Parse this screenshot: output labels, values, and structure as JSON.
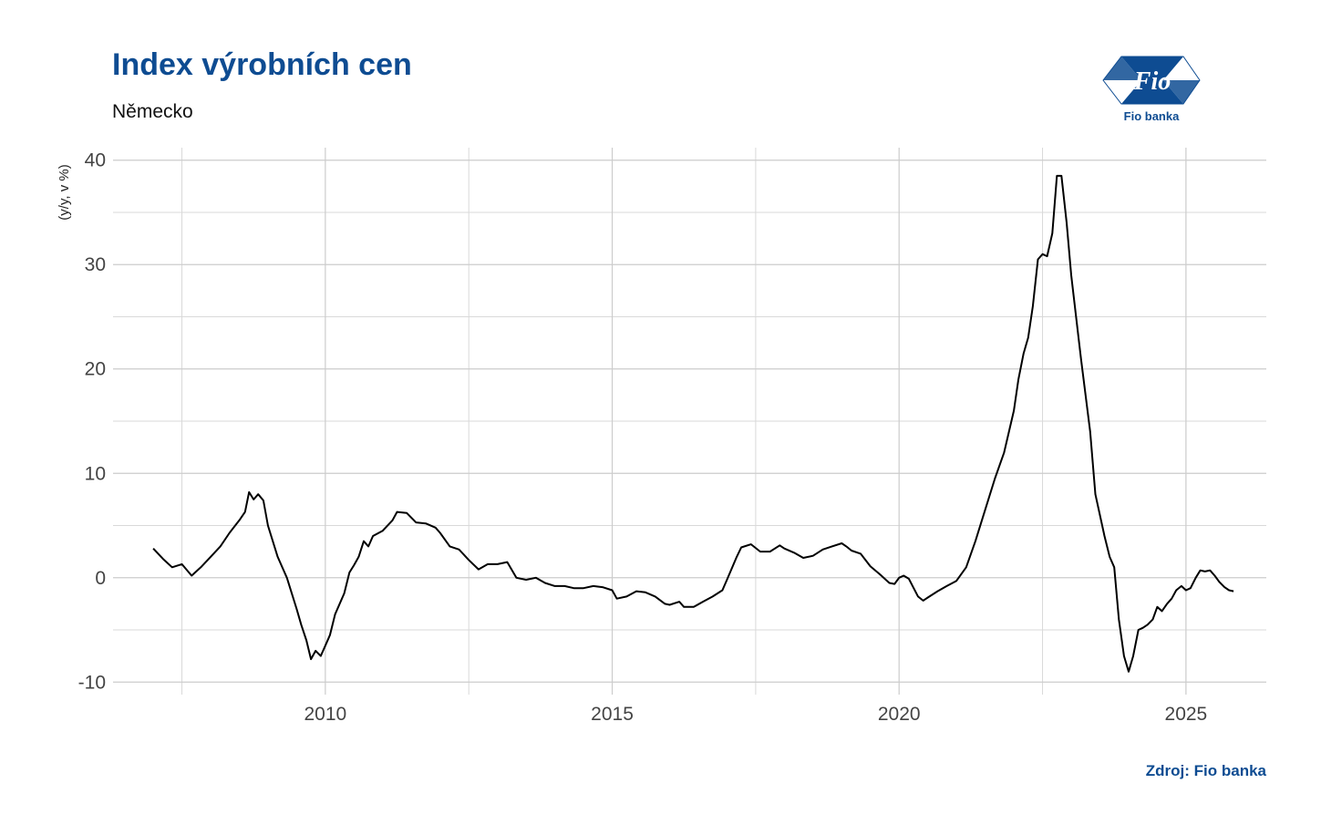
{
  "header": {
    "title": "Index výrobních cen",
    "subtitle": "Německo"
  },
  "footer": {
    "source": "Zdroj: Fio banka"
  },
  "logo": {
    "mark_text": "Fio",
    "caption": "Fio banka",
    "color": "#0e4c92"
  },
  "chart_data": {
    "type": "line",
    "title": "Index výrobních cen",
    "subtitle": "Německo",
    "ylabel": "(y/y, v %)",
    "xlabel": "",
    "xlim": [
      2006.3,
      2026.4
    ],
    "ylim": [
      -11.2,
      41.2
    ],
    "x_ticks": [
      2010,
      2015,
      2020,
      2025
    ],
    "y_ticks": [
      -10,
      0,
      10,
      20,
      30,
      40
    ],
    "grid": true,
    "line_color": "#000000",
    "series": [
      {
        "points": [
          [
            2007.0,
            2.8
          ],
          [
            2007.17,
            1.8
          ],
          [
            2007.33,
            1.0
          ],
          [
            2007.5,
            1.3
          ],
          [
            2007.67,
            0.2
          ],
          [
            2007.83,
            1.0
          ],
          [
            2008.0,
            2.0
          ],
          [
            2008.17,
            3.0
          ],
          [
            2008.33,
            4.3
          ],
          [
            2008.5,
            5.5
          ],
          [
            2008.6,
            6.3
          ],
          [
            2008.67,
            8.2
          ],
          [
            2008.75,
            7.5
          ],
          [
            2008.83,
            8.0
          ],
          [
            2008.92,
            7.4
          ],
          [
            2009.0,
            5.0
          ],
          [
            2009.17,
            2.0
          ],
          [
            2009.33,
            0.0
          ],
          [
            2009.5,
            -3.0
          ],
          [
            2009.58,
            -4.5
          ],
          [
            2009.67,
            -6.0
          ],
          [
            2009.75,
            -7.8
          ],
          [
            2009.83,
            -7.0
          ],
          [
            2009.92,
            -7.5
          ],
          [
            2010.0,
            -6.5
          ],
          [
            2010.08,
            -5.5
          ],
          [
            2010.17,
            -3.5
          ],
          [
            2010.33,
            -1.5
          ],
          [
            2010.42,
            0.5
          ],
          [
            2010.5,
            1.2
          ],
          [
            2010.58,
            2.0
          ],
          [
            2010.67,
            3.5
          ],
          [
            2010.75,
            3.0
          ],
          [
            2010.83,
            4.0
          ],
          [
            2011.0,
            4.5
          ],
          [
            2011.17,
            5.5
          ],
          [
            2011.25,
            6.3
          ],
          [
            2011.42,
            6.2
          ],
          [
            2011.58,
            5.3
          ],
          [
            2011.75,
            5.2
          ],
          [
            2011.92,
            4.8
          ],
          [
            2012.0,
            4.3
          ],
          [
            2012.17,
            3.0
          ],
          [
            2012.33,
            2.7
          ],
          [
            2012.5,
            1.7
          ],
          [
            2012.67,
            0.8
          ],
          [
            2012.83,
            1.3
          ],
          [
            2013.0,
            1.3
          ],
          [
            2013.17,
            1.5
          ],
          [
            2013.33,
            0.0
          ],
          [
            2013.5,
            -0.2
          ],
          [
            2013.67,
            0.0
          ],
          [
            2013.83,
            -0.5
          ],
          [
            2014.0,
            -0.8
          ],
          [
            2014.17,
            -0.8
          ],
          [
            2014.33,
            -1.0
          ],
          [
            2014.5,
            -1.0
          ],
          [
            2014.67,
            -0.8
          ],
          [
            2014.83,
            -0.9
          ],
          [
            2015.0,
            -1.2
          ],
          [
            2015.08,
            -2.0
          ],
          [
            2015.25,
            -1.8
          ],
          [
            2015.42,
            -1.3
          ],
          [
            2015.58,
            -1.4
          ],
          [
            2015.75,
            -1.8
          ],
          [
            2015.92,
            -2.5
          ],
          [
            2016.0,
            -2.6
          ],
          [
            2016.17,
            -2.3
          ],
          [
            2016.25,
            -2.8
          ],
          [
            2016.42,
            -2.8
          ],
          [
            2016.58,
            -2.3
          ],
          [
            2016.75,
            -1.8
          ],
          [
            2016.92,
            -1.2
          ],
          [
            2017.0,
            -0.2
          ],
          [
            2017.17,
            2.0
          ],
          [
            2017.25,
            2.9
          ],
          [
            2017.42,
            3.2
          ],
          [
            2017.58,
            2.5
          ],
          [
            2017.75,
            2.5
          ],
          [
            2017.92,
            3.1
          ],
          [
            2018.0,
            2.8
          ],
          [
            2018.17,
            2.4
          ],
          [
            2018.33,
            1.9
          ],
          [
            2018.5,
            2.1
          ],
          [
            2018.67,
            2.7
          ],
          [
            2018.83,
            3.0
          ],
          [
            2019.0,
            3.3
          ],
          [
            2019.08,
            3.0
          ],
          [
            2019.17,
            2.6
          ],
          [
            2019.33,
            2.3
          ],
          [
            2019.5,
            1.1
          ],
          [
            2019.67,
            0.3
          ],
          [
            2019.83,
            -0.5
          ],
          [
            2019.92,
            -0.6
          ],
          [
            2020.0,
            0.0
          ],
          [
            2020.08,
            0.2
          ],
          [
            2020.17,
            -0.1
          ],
          [
            2020.33,
            -1.8
          ],
          [
            2020.42,
            -2.2
          ],
          [
            2020.5,
            -1.9
          ],
          [
            2020.67,
            -1.3
          ],
          [
            2020.83,
            -0.8
          ],
          [
            2021.0,
            -0.3
          ],
          [
            2021.17,
            1.0
          ],
          [
            2021.33,
            3.5
          ],
          [
            2021.5,
            6.5
          ],
          [
            2021.67,
            9.5
          ],
          [
            2021.83,
            12.0
          ],
          [
            2022.0,
            16.0
          ],
          [
            2022.08,
            19.0
          ],
          [
            2022.17,
            21.5
          ],
          [
            2022.25,
            23.0
          ],
          [
            2022.33,
            26.0
          ],
          [
            2022.42,
            30.5
          ],
          [
            2022.5,
            31.0
          ],
          [
            2022.58,
            30.8
          ],
          [
            2022.67,
            33.0
          ],
          [
            2022.75,
            38.5
          ],
          [
            2022.83,
            38.5
          ],
          [
            2022.92,
            34.0
          ],
          [
            2023.0,
            29.0
          ],
          [
            2023.17,
            21.0
          ],
          [
            2023.33,
            14.0
          ],
          [
            2023.42,
            8.0
          ],
          [
            2023.58,
            4.0
          ],
          [
            2023.67,
            2.0
          ],
          [
            2023.75,
            1.0
          ],
          [
            2023.83,
            -4.0
          ],
          [
            2023.92,
            -7.5
          ],
          [
            2024.0,
            -9.0
          ],
          [
            2024.08,
            -7.5
          ],
          [
            2024.17,
            -5.0
          ],
          [
            2024.25,
            -4.8
          ],
          [
            2024.33,
            -4.5
          ],
          [
            2024.42,
            -4.0
          ],
          [
            2024.5,
            -2.8
          ],
          [
            2024.58,
            -3.2
          ],
          [
            2024.67,
            -2.5
          ],
          [
            2024.75,
            -2.0
          ],
          [
            2024.83,
            -1.2
          ],
          [
            2024.92,
            -0.8
          ],
          [
            2025.0,
            -1.2
          ],
          [
            2025.08,
            -1.0
          ],
          [
            2025.17,
            0.0
          ],
          [
            2025.25,
            0.7
          ],
          [
            2025.33,
            0.6
          ],
          [
            2025.42,
            0.7
          ],
          [
            2025.5,
            0.2
          ],
          [
            2025.58,
            -0.4
          ],
          [
            2025.67,
            -0.9
          ],
          [
            2025.75,
            -1.2
          ],
          [
            2025.83,
            -1.3
          ]
        ]
      }
    ]
  }
}
